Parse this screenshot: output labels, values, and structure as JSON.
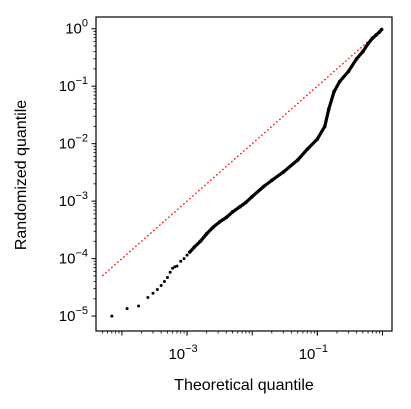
{
  "chart_data": {
    "type": "scatter",
    "title": "",
    "xlabel": "Theoretical quantile",
    "ylabel": "Randomized quantile",
    "x_scale": "log",
    "y_scale": "log",
    "xlim": [
      4e-05,
      1.4
    ],
    "ylim": [
      5.5e-06,
      1.6
    ],
    "x_ticks": [
      {
        "value": 0.001,
        "base": "10",
        "exp": "−3"
      },
      {
        "value": 0.1,
        "base": "10",
        "exp": "−1"
      }
    ],
    "y_ticks": [
      {
        "value": 1e-05,
        "base": "10",
        "exp": "−5"
      },
      {
        "value": 0.0001,
        "base": "10",
        "exp": "−4"
      },
      {
        "value": 0.001,
        "base": "10",
        "exp": "−3"
      },
      {
        "value": 0.01,
        "base": "10",
        "exp": "−2"
      },
      {
        "value": 0.1,
        "base": "10",
        "exp": "−1"
      },
      {
        "value": 1,
        "base": "10",
        "exp": "0"
      }
    ],
    "grid": false,
    "reference_line": {
      "x": [
        5e-05,
        1.0
      ],
      "y": [
        5e-05,
        1.0
      ],
      "color": "#ff0000",
      "style": "dotted"
    },
    "point_color": "#000000",
    "points": [
      [
        7e-05,
        1e-05
      ],
      [
        0.00012,
        1.35e-05
      ],
      [
        0.00018,
        1.5e-05
      ],
      [
        0.00025,
        2.1e-05
      ],
      [
        0.0003,
        2.5e-05
      ],
      [
        0.00035,
        2.9e-05
      ],
      [
        0.0004,
        3.4e-05
      ],
      [
        0.00045,
        4e-05
      ],
      [
        0.0005,
        4.7e-05
      ],
      [
        0.00055,
        5.8e-05
      ],
      [
        0.0006,
        6.8e-05
      ],
      [
        0.00065,
        7.2e-05
      ],
      [
        0.0007,
        7.4e-05
      ],
      [
        0.0008,
        9e-05
      ],
      [
        0.0009,
        0.0001
      ],
      [
        0.001,
        0.000115
      ]
    ],
    "curve": [
      [
        0.0011,
        0.00013
      ],
      [
        0.0013,
        0.00016
      ],
      [
        0.0016,
        0.0002
      ],
      [
        0.002,
        0.00027
      ],
      [
        0.0025,
        0.00035
      ],
      [
        0.0032,
        0.00044
      ],
      [
        0.004,
        0.00052
      ],
      [
        0.005,
        0.00065
      ],
      [
        0.0065,
        0.0008
      ],
      [
        0.008,
        0.00095
      ],
      [
        0.01,
        0.0012
      ],
      [
        0.015,
        0.0018
      ],
      [
        0.02,
        0.0023
      ],
      [
        0.03,
        0.0032
      ],
      [
        0.05,
        0.0052
      ],
      [
        0.07,
        0.008
      ],
      [
        0.1,
        0.012
      ],
      [
        0.13,
        0.02
      ],
      [
        0.15,
        0.04
      ],
      [
        0.18,
        0.08
      ],
      [
        0.22,
        0.12
      ],
      [
        0.3,
        0.18
      ],
      [
        0.4,
        0.3
      ],
      [
        0.5,
        0.4
      ],
      [
        0.6,
        0.55
      ],
      [
        0.7,
        0.68
      ],
      [
        0.8,
        0.78
      ],
      [
        0.9,
        0.88
      ],
      [
        0.97,
        0.97
      ]
    ]
  }
}
